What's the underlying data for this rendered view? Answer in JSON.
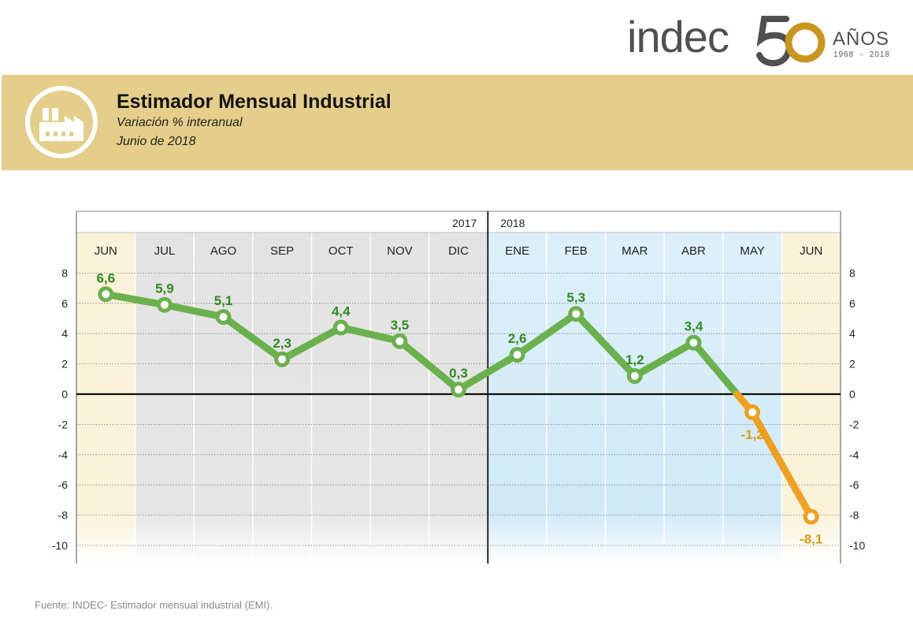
{
  "brand": {
    "logo_text": "indec",
    "anniversary_number": "50",
    "anniversary_label": "AÑOS",
    "anniversary_years": "1968  -  2018",
    "gold_color": "#c8961e",
    "grey_color": "#505050"
  },
  "header": {
    "icon": "factory-icon",
    "title": "Estimador Mensual Industrial",
    "subtitle": "Variación % interanual",
    "date": "Junio de 2018",
    "background": "#e4ce8a"
  },
  "chart_data": {
    "type": "line",
    "year_labels": [
      "2017",
      "2018"
    ],
    "categories": [
      "JUN",
      "JUL",
      "AGO",
      "SEP",
      "OCT",
      "NOV",
      "DIC",
      "ENE",
      "FEB",
      "MAR",
      "ABR",
      "MAY",
      "JUN"
    ],
    "values": [
      6.6,
      5.9,
      5.1,
      2.3,
      4.4,
      3.5,
      0.3,
      2.6,
      5.3,
      1.2,
      3.4,
      -1.2,
      -8.1
    ],
    "value_labels": [
      "6,6",
      "5,9",
      "5,1",
      "2,3",
      "4,4",
      "3,5",
      "0,3",
      "2,6",
      "5,3",
      "1,2",
      "3,4",
      "-1,2",
      "-8,1"
    ],
    "yticks": [
      "8",
      "6",
      "4",
      "2",
      "0",
      "-2",
      "-4",
      "-6",
      "-8",
      "-10"
    ],
    "ylim": [
      -11,
      9
    ],
    "positive_color": "#6ab04c",
    "negative_color": "#f0a020",
    "positive_label_color": "#2e8b22",
    "negative_label_color": "#e09a10",
    "grid": true
  },
  "footer": {
    "source": "Fuente: INDEC- Estimador mensual industrial (EMI)."
  }
}
